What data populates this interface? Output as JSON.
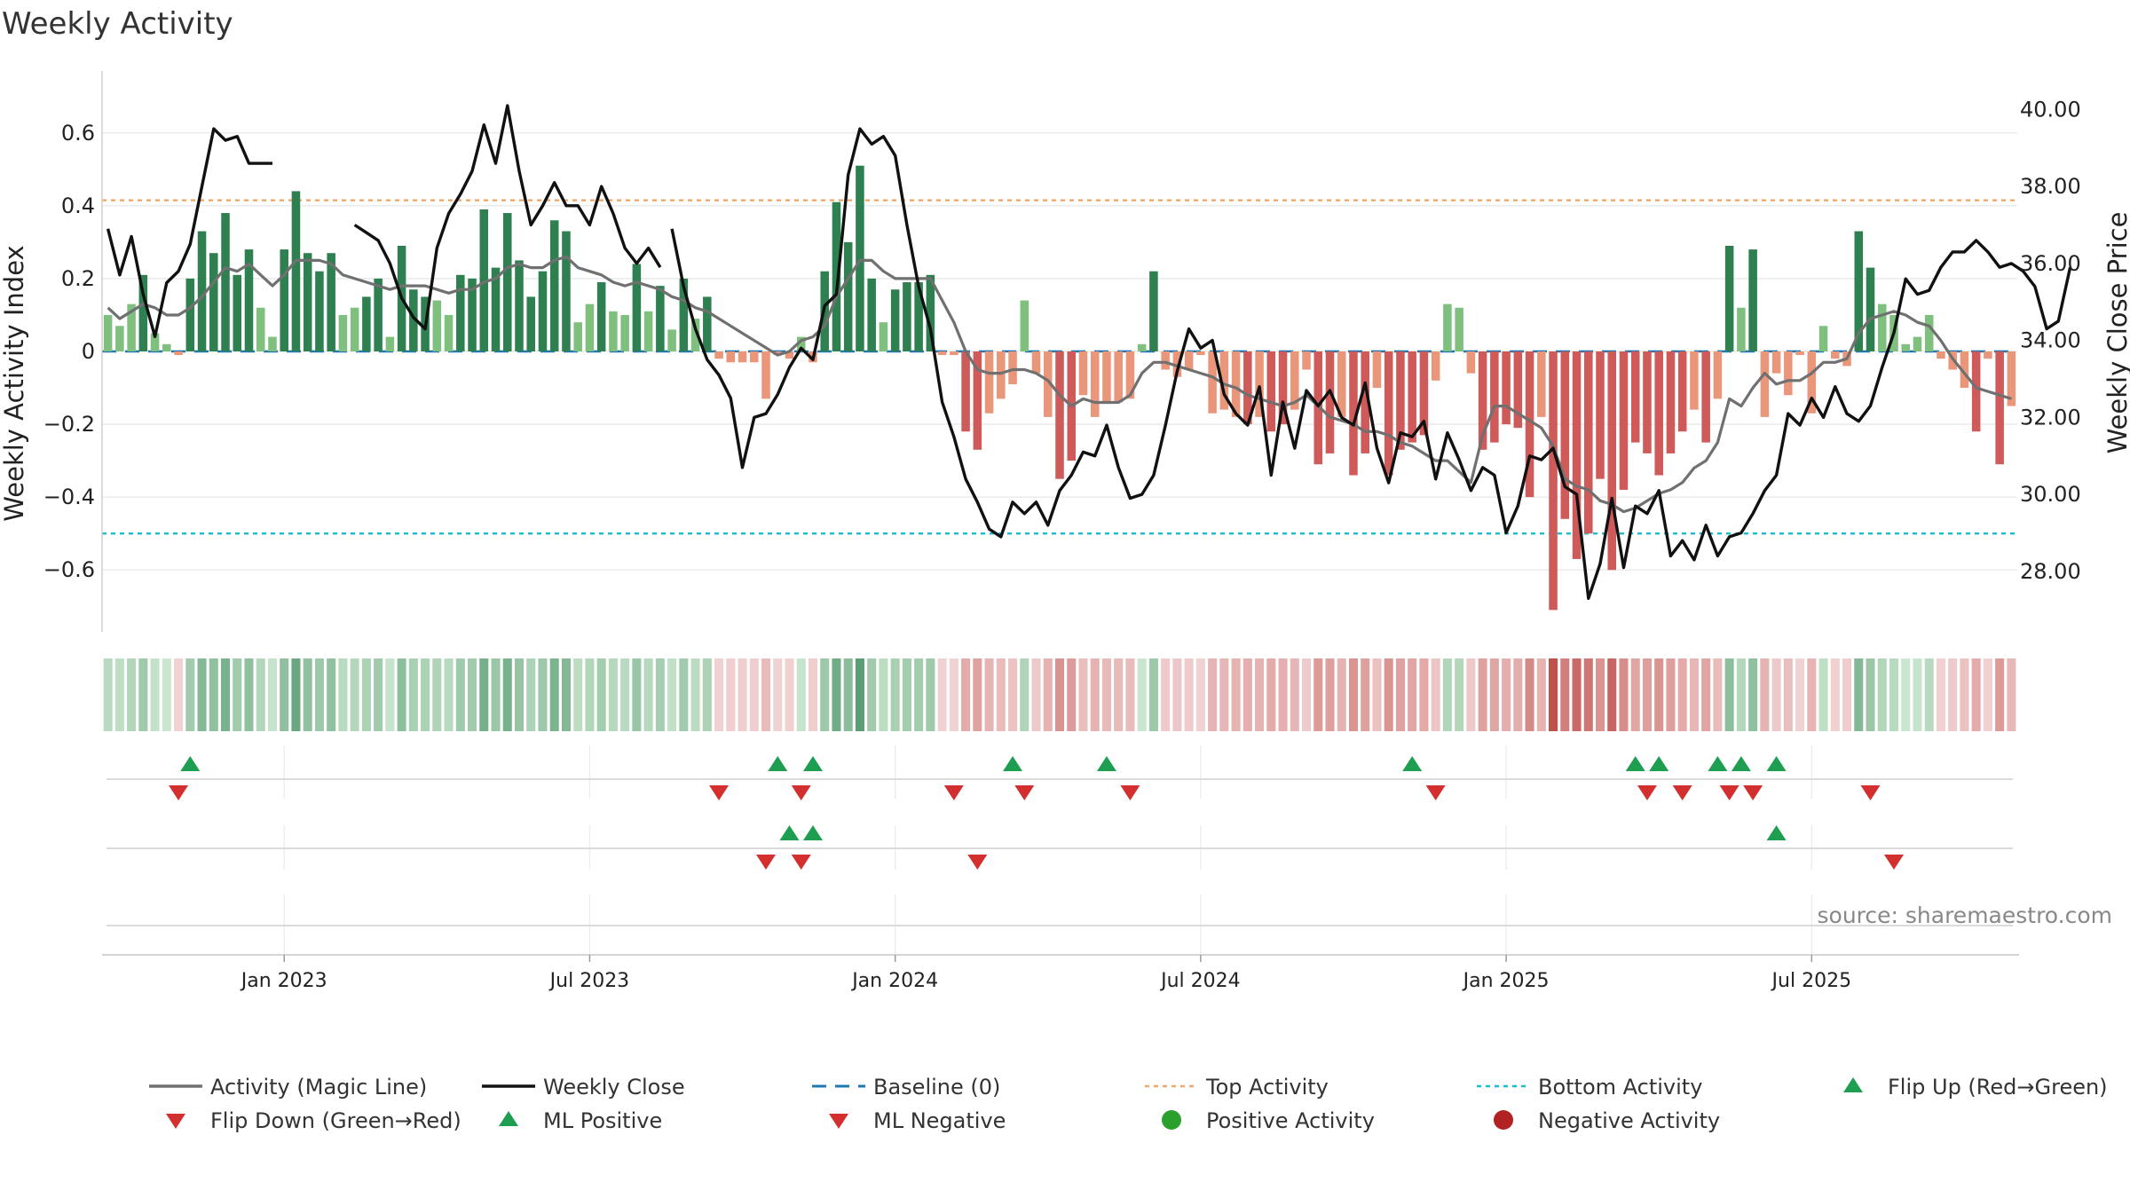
{
  "title": "Weekly Activity",
  "source": "source: sharemaestro.com",
  "colors": {
    "pos_strong": "#2e8050",
    "pos_weak": "#7fc07f",
    "neg_strong": "#cf5a5a",
    "neg_weak": "#e9967a",
    "magic_line": "#707070",
    "close_line": "#111111",
    "baseline": "#1f77b4",
    "top": "#f0a868",
    "bottom": "#17becf",
    "flip_up": "#1e9e50",
    "flip_down": "#d32f2f",
    "pos_dot": "#2ca02c",
    "neg_dot": "#b22222",
    "grid": "#e8e8e8",
    "axis": "#cfcfcf",
    "text": "#222222",
    "source": "#888888"
  },
  "chart_data": {
    "type": "bar",
    "title": "Weekly Activity",
    "ylabel_left": "Weekly Activity Index",
    "ylabel_right": "Weekly Close Price",
    "ylim_left": [
      -0.77,
      0.77
    ],
    "ylim_right": [
      26.43,
      41.0
    ],
    "yticks_left": [
      0.6,
      0.4,
      0.2,
      0,
      -0.2,
      -0.4,
      -0.6
    ],
    "yticks_left_labels": [
      "0.6",
      "0.4",
      "0.2",
      "0",
      "−0.2",
      "−0.4",
      "−0.6"
    ],
    "yticks_right": [
      40,
      38,
      36,
      34,
      32,
      30,
      28
    ],
    "yticks_right_labels": [
      "40.00",
      "38.00",
      "36.00",
      "34.00",
      "32.00",
      "30.00",
      "28.00"
    ],
    "xticks": [
      {
        "week": 15,
        "label": "Jan 2023"
      },
      {
        "week": 41,
        "label": "Jul 2023"
      },
      {
        "week": 67,
        "label": "Jan 2024"
      },
      {
        "week": 93,
        "label": "Jul 2024"
      },
      {
        "week": 119,
        "label": "Jan 2025"
      },
      {
        "week": 145,
        "label": "Jul 2025"
      }
    ],
    "top_activity": 0.415,
    "bottom_activity": -0.5,
    "baseline": 0,
    "activity": [
      0.1,
      0.07,
      0.13,
      0.21,
      0.05,
      0.02,
      -0.01,
      0.2,
      0.33,
      0.27,
      0.38,
      0.21,
      0.28,
      0.12,
      0.04,
      0.28,
      0.44,
      0.27,
      0.22,
      0.27,
      0.1,
      0.12,
      0.15,
      0.2,
      0.04,
      0.29,
      0.17,
      0.15,
      0.14,
      0.1,
      0.21,
      0.2,
      0.39,
      0.23,
      0.38,
      0.25,
      0.15,
      0.22,
      0.36,
      0.33,
      0.08,
      0.13,
      0.19,
      0.11,
      0.1,
      0.24,
      0.11,
      0.18,
      0.06,
      0.2,
      0.09,
      0.15,
      -0.02,
      -0.03,
      -0.03,
      -0.03,
      -0.13,
      -0.01,
      -0.02,
      0.04,
      -0.03,
      0.22,
      0.41,
      0.3,
      0.51,
      0.2,
      0.08,
      0.17,
      0.19,
      0.19,
      0.21,
      -0.01,
      -0.01,
      -0.22,
      -0.27,
      -0.17,
      -0.13,
      -0.09,
      0.14,
      -0.06,
      -0.18,
      -0.35,
      -0.3,
      -0.12,
      -0.18,
      -0.14,
      -0.14,
      -0.13,
      0.02,
      0.22,
      -0.05,
      -0.07,
      -0.05,
      -0.01,
      -0.17,
      -0.16,
      -0.18,
      -0.2,
      -0.18,
      -0.22,
      -0.2,
      -0.16,
      -0.05,
      -0.31,
      -0.28,
      -0.18,
      -0.34,
      -0.28,
      -0.1,
      -0.34,
      -0.27,
      -0.25,
      -0.23,
      -0.08,
      0.13,
      0.12,
      -0.06,
      -0.27,
      -0.25,
      -0.2,
      -0.21,
      -0.4,
      -0.18,
      -0.71,
      -0.46,
      -0.57,
      -0.5,
      -0.35,
      -0.6,
      -0.38,
      -0.25,
      -0.28,
      -0.34,
      -0.28,
      -0.22,
      -0.16,
      -0.25,
      -0.13,
      0.29,
      0.12,
      0.28,
      -0.18,
      -0.06,
      -0.12,
      -0.01,
      -0.17,
      0.07,
      -0.02,
      -0.04,
      0.33,
      0.23,
      0.13,
      0.1,
      0.02,
      0.04,
      0.1,
      -0.02,
      -0.05,
      -0.1,
      -0.22,
      -0.02,
      -0.31,
      -0.15
    ],
    "magic_line": [
      0.12,
      0.09,
      0.11,
      0.13,
      0.12,
      0.1,
      0.1,
      0.12,
      0.15,
      0.19,
      0.23,
      0.22,
      0.24,
      0.21,
      0.18,
      0.21,
      0.25,
      0.25,
      0.25,
      0.24,
      0.21,
      0.2,
      0.19,
      0.18,
      0.17,
      0.18,
      0.18,
      0.18,
      0.17,
      0.16,
      0.17,
      0.17,
      0.19,
      0.2,
      0.23,
      0.24,
      0.23,
      0.23,
      0.25,
      0.26,
      0.23,
      0.22,
      0.21,
      0.19,
      0.18,
      0.19,
      0.18,
      0.17,
      0.15,
      0.14,
      0.12,
      0.11,
      0.09,
      0.07,
      0.05,
      0.03,
      0.01,
      -0.01,
      0.0,
      0.03,
      0.04,
      0.07,
      0.15,
      0.2,
      0.25,
      0.25,
      0.22,
      0.2,
      0.2,
      0.2,
      0.2,
      0.14,
      0.08,
      0.0,
      -0.05,
      -0.06,
      -0.06,
      -0.05,
      -0.05,
      -0.06,
      -0.08,
      -0.12,
      -0.15,
      -0.13,
      -0.14,
      -0.14,
      -0.14,
      -0.12,
      -0.06,
      -0.03,
      -0.03,
      -0.04,
      -0.05,
      -0.06,
      -0.07,
      -0.09,
      -0.1,
      -0.12,
      -0.13,
      -0.14,
      -0.15,
      -0.14,
      -0.12,
      -0.15,
      -0.18,
      -0.19,
      -0.2,
      -0.22,
      -0.22,
      -0.23,
      -0.25,
      -0.26,
      -0.28,
      -0.3,
      -0.3,
      -0.33,
      -0.36,
      -0.23,
      -0.15,
      -0.15,
      -0.17,
      -0.19,
      -0.21,
      -0.26,
      -0.35,
      -0.37,
      -0.38,
      -0.41,
      -0.42,
      -0.44,
      -0.43,
      -0.41,
      -0.39,
      -0.38,
      -0.36,
      -0.32,
      -0.3,
      -0.25,
      -0.13,
      -0.15,
      -0.1,
      -0.06,
      -0.09,
      -0.08,
      -0.08,
      -0.06,
      -0.03,
      -0.03,
      -0.02,
      0.05,
      0.09,
      0.1,
      0.11,
      0.1,
      0.08,
      0.07,
      0.03,
      -0.02,
      -0.06,
      -0.1,
      -0.11,
      -0.12,
      -0.13
    ],
    "weekly_close": [
      36.9,
      35.7,
      36.7,
      35.2,
      34.1,
      35.5,
      35.8,
      36.5,
      38.0,
      39.5,
      39.2,
      39.3,
      38.6,
      38.6,
      38.6,
      36.0,
      39.4,
      38.9,
      39.3,
      38.4,
      37.5,
      37.0,
      36.8,
      36.6,
      36.0,
      35.1,
      34.6,
      34.3,
      36.4,
      37.3,
      37.8,
      38.4,
      39.6,
      38.6,
      40.1,
      38.4,
      37.0,
      37.5,
      38.1,
      37.5,
      37.5,
      37.0,
      38.0,
      37.3,
      36.4,
      36.0,
      36.4,
      35.9,
      36.9,
      35.4,
      34.3,
      33.5,
      33.1,
      32.5,
      30.7,
      32.0,
      32.1,
      32.6,
      33.3,
      33.8,
      33.5,
      34.9,
      35.2,
      38.3,
      39.5,
      39.1,
      39.3,
      38.8,
      37.0,
      35.4,
      34.3,
      32.4,
      31.5,
      30.4,
      29.8,
      29.1,
      28.9,
      29.8,
      29.5,
      29.8,
      29.2,
      30.1,
      30.5,
      31.1,
      31.0,
      31.8,
      30.7,
      29.9,
      30.0,
      30.5,
      31.8,
      33.2,
      34.3,
      33.8,
      34.0,
      32.6,
      32.1,
      31.8,
      32.8,
      30.5,
      32.4,
      31.2,
      32.7,
      32.3,
      32.7,
      32.0,
      31.8,
      32.9,
      31.2,
      30.3,
      31.6,
      31.5,
      31.9,
      30.4,
      31.6,
      30.9,
      30.1,
      30.7,
      30.5,
      29.0,
      29.7,
      31.0,
      30.9,
      31.2,
      30.2,
      30.0,
      27.3,
      28.2,
      29.9,
      28.1,
      29.7,
      29.5,
      30.1,
      28.4,
      28.8,
      28.3,
      29.2,
      28.4,
      28.9,
      29.0,
      29.5,
      30.1,
      30.5,
      32.1,
      31.8,
      32.5,
      32.0,
      32.8,
      32.1,
      31.9,
      32.3,
      33.3,
      34.2,
      35.6,
      35.2,
      35.3,
      35.9,
      36.3,
      36.3,
      36.6,
      36.3,
      35.9,
      36.0,
      35.8,
      35.4,
      34.3,
      34.5,
      35.9,
      36.2
    ],
    "weekly_close_line_spans": [
      [
        0,
        14
      ],
      [
        21,
        47
      ],
      [
        48,
        167
      ]
    ],
    "flip_up": [
      7,
      57,
      60,
      77,
      85,
      111,
      130,
      132,
      137,
      139,
      142
    ],
    "flip_down": [
      6,
      52,
      59,
      72,
      78,
      87,
      113,
      131,
      134,
      138,
      140,
      150
    ],
    "ml_positive": [
      58,
      60,
      142
    ],
    "ml_negative": [
      56,
      59,
      74,
      152
    ],
    "legend": [
      {
        "key": "magic",
        "label": "Activity (Magic Line)"
      },
      {
        "key": "close",
        "label": "Weekly Close"
      },
      {
        "key": "baseline",
        "label": "Baseline (0)"
      },
      {
        "key": "top",
        "label": "Top Activity"
      },
      {
        "key": "bottom",
        "label": "Bottom Activity"
      },
      {
        "key": "flipup",
        "label": "Flip Up (Red→Green)"
      },
      {
        "key": "flipdown",
        "label": "Flip Down (Green→Red)"
      },
      {
        "key": "mlpos",
        "label": "ML Positive"
      },
      {
        "key": "mlneg",
        "label": "ML Negative"
      },
      {
        "key": "posdot",
        "label": "Positive Activity"
      },
      {
        "key": "negdot",
        "label": "Negative Activity"
      }
    ]
  }
}
